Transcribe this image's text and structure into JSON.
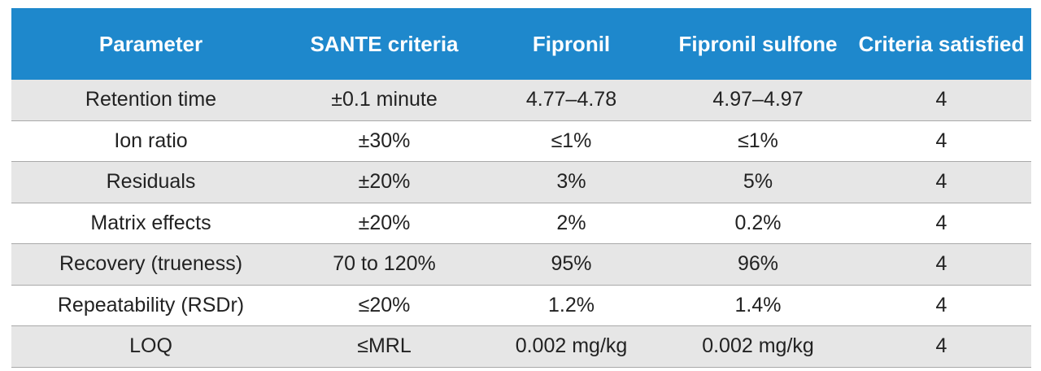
{
  "table": {
    "headers": [
      "Parameter",
      "SANTE criteria",
      "Fipronil",
      "Fipronil sulfone",
      "Criteria satisfied"
    ],
    "rows": [
      [
        "Retention time",
        "±0.1 minute",
        "4.77–4.78",
        "4.97–4.97",
        "4"
      ],
      [
        "Ion ratio",
        "±30%",
        "≤1%",
        "≤1%",
        "4"
      ],
      [
        "Residuals",
        "±20%",
        "3%",
        "5%",
        "4"
      ],
      [
        "Matrix effects",
        "±20%",
        "2%",
        "0.2%",
        "4"
      ],
      [
        "Recovery (trueness)",
        "70 to 120%",
        "95%",
        "96%",
        "4"
      ],
      [
        "Repeatability (RSDr)",
        "≤20%",
        "1.2%",
        "1.4%",
        "4"
      ],
      [
        "LOQ",
        "≤MRL",
        "0.002 mg/kg",
        "0.002 mg/kg",
        "4"
      ]
    ]
  },
  "colors": {
    "header_bg": "#1e88cc",
    "header_text": "#ffffff",
    "row_alt_bg": "#e6e6e6",
    "row_bg": "#ffffff",
    "divider": "#a9a9a9"
  }
}
